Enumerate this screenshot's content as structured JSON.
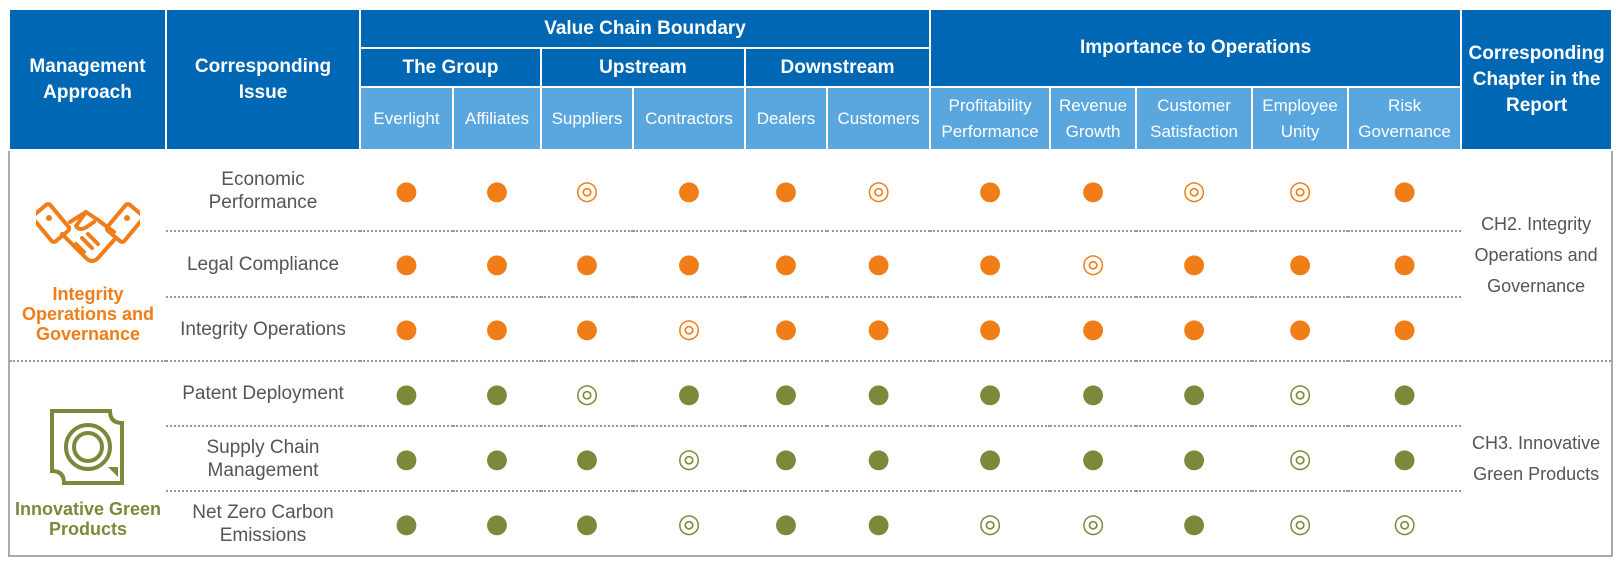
{
  "header": {
    "management_approach": "Management Approach",
    "corresponding_issue": "Corresponding Issue",
    "value_chain_boundary": "Value Chain Boundary",
    "importance_to_operations": "Importance to Operations",
    "corresponding_chapter": "Corresponding Chapter in the Report",
    "groups": [
      "The Group",
      "Upstream",
      "Downstream"
    ],
    "columns": [
      "Everlight",
      "Affiliates",
      "Suppliers",
      "Contractors",
      "Dealers",
      "Customers",
      "Profitability Performance",
      "Revenue Growth",
      "Customer Satisfaction",
      "Employee Unity",
      "Risk Governance"
    ]
  },
  "sections": [
    {
      "approach": "Integrity Operations and Governance",
      "chapter": "CH2. Integrity Operations and Governance",
      "color": "#f07d17",
      "rows": [
        {
          "issue": "Economic\nPerformance",
          "marks": [
            "●",
            "●",
            "◎",
            "●",
            "●",
            "◎",
            "●",
            "●",
            "◎",
            "◎",
            "●"
          ]
        },
        {
          "issue": "Legal Compliance",
          "marks": [
            "●",
            "●",
            "●",
            "●",
            "●",
            "●",
            "●",
            "◎",
            "●",
            "●",
            "●"
          ]
        },
        {
          "issue": "Integrity Operations",
          "marks": [
            "●",
            "●",
            "●",
            "◎",
            "●",
            "●",
            "●",
            "●",
            "●",
            "●",
            "●"
          ]
        }
      ]
    },
    {
      "approach": "Innovative Green Products",
      "chapter": "CH3. Innovative Green Products",
      "color": "#7a8a3a",
      "rows": [
        {
          "issue": "Patent Deployment",
          "marks": [
            "●",
            "●",
            "◎",
            "●",
            "●",
            "●",
            "●",
            "●",
            "●",
            "◎",
            "●"
          ]
        },
        {
          "issue": "Supply Chain\nManagement",
          "marks": [
            "●",
            "●",
            "●",
            "◎",
            "●",
            "●",
            "●",
            "●",
            "●",
            "◎",
            "●"
          ]
        },
        {
          "issue": "Net Zero Carbon\nEmissions",
          "marks": [
            "●",
            "●",
            "●",
            "◎",
            "●",
            "●",
            "◎",
            "◎",
            "●",
            "◎",
            "◎"
          ]
        }
      ]
    }
  ]
}
